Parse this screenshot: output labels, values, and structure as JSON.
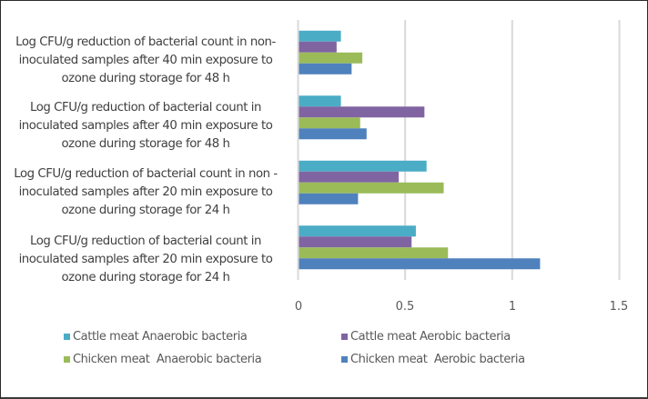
{
  "chart_data": {
    "type": "bar",
    "orientation": "horizontal",
    "title": "",
    "xlabel": "",
    "ylabel": "",
    "xlim": [
      0,
      1.5
    ],
    "x_ticks": [
      "0",
      "0.5",
      "1",
      "1.5"
    ],
    "x_tick_values": [
      0,
      0.5,
      1,
      1.5
    ],
    "grid": true,
    "legend_position": "bottom",
    "categories": [
      "Log CFU/g reduction of bacterial count in non-\ninoculated samples after 40 min exposure to\nozone during storage for 48 h",
      "Log CFU/g reduction of bacterial count in\ninoculated samples after 40 min exposure to\nozone during storage for 48 h",
      "Log CFU/g reduction of bacterial count in non -\ninoculated samples after 20 min exposure to\nozone during storage for 24 h",
      "Log CFU/g reduction of bacterial count in\ninoculated samples after 20 min exposure to\nozone during storage for 24 h"
    ],
    "series": [
      {
        "name": "Cattle meat Anaerobic bacteria",
        "color": "#4BACC6",
        "values": [
          0.2,
          0.2,
          0.6,
          0.55
        ]
      },
      {
        "name": "Cattle meat Aerobic bacteria",
        "color": "#8064A2",
        "values": [
          0.18,
          0.59,
          0.47,
          0.53
        ]
      },
      {
        "name": "Chicken meat  Anaerobic bacteria",
        "color": "#9BBB59",
        "values": [
          0.3,
          0.29,
          0.68,
          0.7
        ]
      },
      {
        "name": "Chicken meat  Aerobic bacteria",
        "color": "#4F81BD",
        "values": [
          0.25,
          0.32,
          0.28,
          1.13
        ]
      }
    ]
  }
}
